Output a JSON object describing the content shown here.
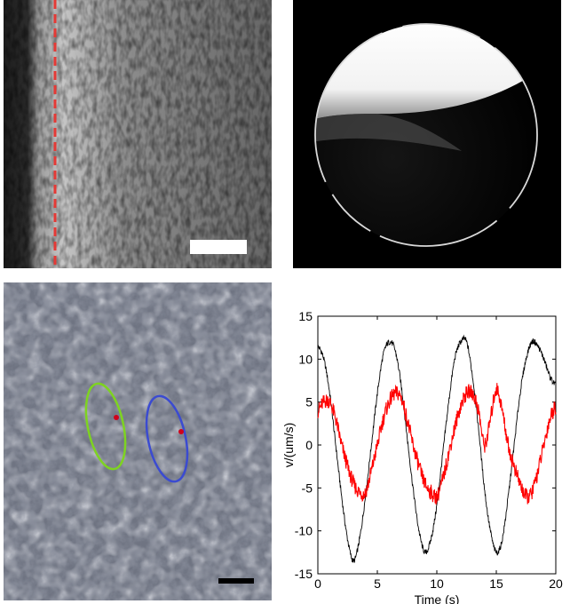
{
  "figure": {
    "panels": [
      {
        "id": "a",
        "kind": "micrograph-boundary",
        "marker_color": "#e53935",
        "scalebar_color": "#ffffff"
      },
      {
        "id": "b",
        "kind": "droplet-image",
        "background": "#000000"
      },
      {
        "id": "c",
        "kind": "micrograph-ellipses",
        "ellipse_colors": [
          "#7ed321",
          "#3b4bd1"
        ],
        "scalebar_color": "#000000"
      },
      {
        "id": "d",
        "kind": "line-chart"
      }
    ]
  },
  "chart_data": {
    "type": "line",
    "title": "",
    "xlabel": "Time (s)",
    "ylabel": "v/(um/s)",
    "xlim": [
      0,
      20
    ],
    "ylim": [
      -15,
      15
    ],
    "xticks": [
      0,
      5,
      10,
      15,
      20
    ],
    "yticks": [
      -15,
      -10,
      -5,
      0,
      5,
      10,
      15
    ],
    "grid": false,
    "series": [
      {
        "color": "#000000",
        "x": [
          0,
          0.5,
          1,
          1.5,
          2,
          2.5,
          3,
          3.5,
          4,
          4.5,
          5,
          5.5,
          6,
          6.5,
          7,
          7.5,
          8,
          8.5,
          9,
          9.5,
          10,
          10.5,
          11,
          11.5,
          12,
          12.5,
          13,
          13.5,
          14,
          14.5,
          15,
          15.5,
          16,
          16.5,
          17,
          17.5,
          18,
          18.5,
          19,
          19.5,
          20
        ],
        "y": [
          11.5,
          10,
          6,
          0,
          -6,
          -11,
          -13.5,
          -11,
          -6,
          0,
          6,
          10.5,
          12,
          11,
          7,
          1,
          -5,
          -10,
          -12.5,
          -11,
          -7,
          -1,
          5,
          10,
          12,
          12,
          8,
          2,
          -5,
          -10,
          -12.5,
          -11,
          -6,
          0,
          6,
          10,
          12,
          11.5,
          10,
          8,
          7
        ]
      },
      {
        "color": "#ff0000",
        "x": [
          0,
          0.5,
          1,
          1.5,
          2,
          2.5,
          3,
          3.5,
          4,
          4.5,
          5,
          5.5,
          6,
          6.5,
          7,
          7.5,
          8,
          8.5,
          9,
          9.5,
          10,
          10.5,
          11,
          11.5,
          12,
          12.5,
          13,
          13.5,
          14,
          14.5,
          15,
          15.5,
          16,
          16.5,
          17,
          17.5,
          18,
          18.5,
          19,
          19.5,
          20
        ],
        "y": [
          4,
          5,
          5,
          3,
          0,
          -2.5,
          -4.5,
          -5.5,
          -5.5,
          -3,
          0,
          3,
          5,
          6,
          5.5,
          3,
          0,
          -2.5,
          -4.5,
          -5.5,
          -6,
          -4,
          -1,
          2,
          4.5,
          6,
          6,
          4,
          0,
          3,
          6.5,
          4,
          0,
          -2.5,
          -4.5,
          -6,
          -5.5,
          -3,
          0,
          3,
          4.5
        ]
      }
    ]
  }
}
